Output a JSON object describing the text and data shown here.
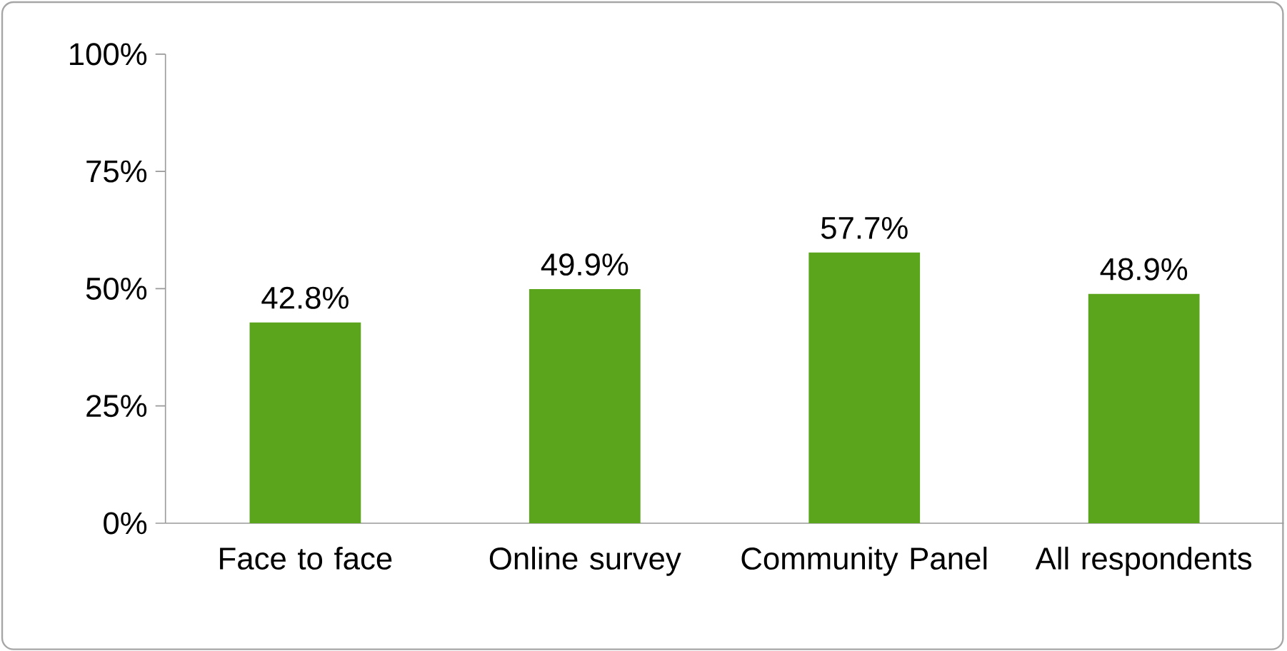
{
  "chart_data": {
    "type": "bar",
    "categories": [
      "Face to face",
      "Online survey",
      "Community Panel",
      "All respondents"
    ],
    "values": [
      42.8,
      49.9,
      57.7,
      48.9
    ],
    "value_labels": [
      "42.8%",
      "49.9%",
      "57.7%",
      "48.9%"
    ],
    "color": "#5ba51c",
    "ylim": [
      0,
      100
    ],
    "yticks": [
      {
        "value": 0,
        "label": "0%"
      },
      {
        "value": 25,
        "label": "25%"
      },
      {
        "value": 50,
        "label": "50%"
      },
      {
        "value": 75,
        "label": "75%"
      },
      {
        "value": 100,
        "label": "100%"
      }
    ],
    "grid": false
  }
}
